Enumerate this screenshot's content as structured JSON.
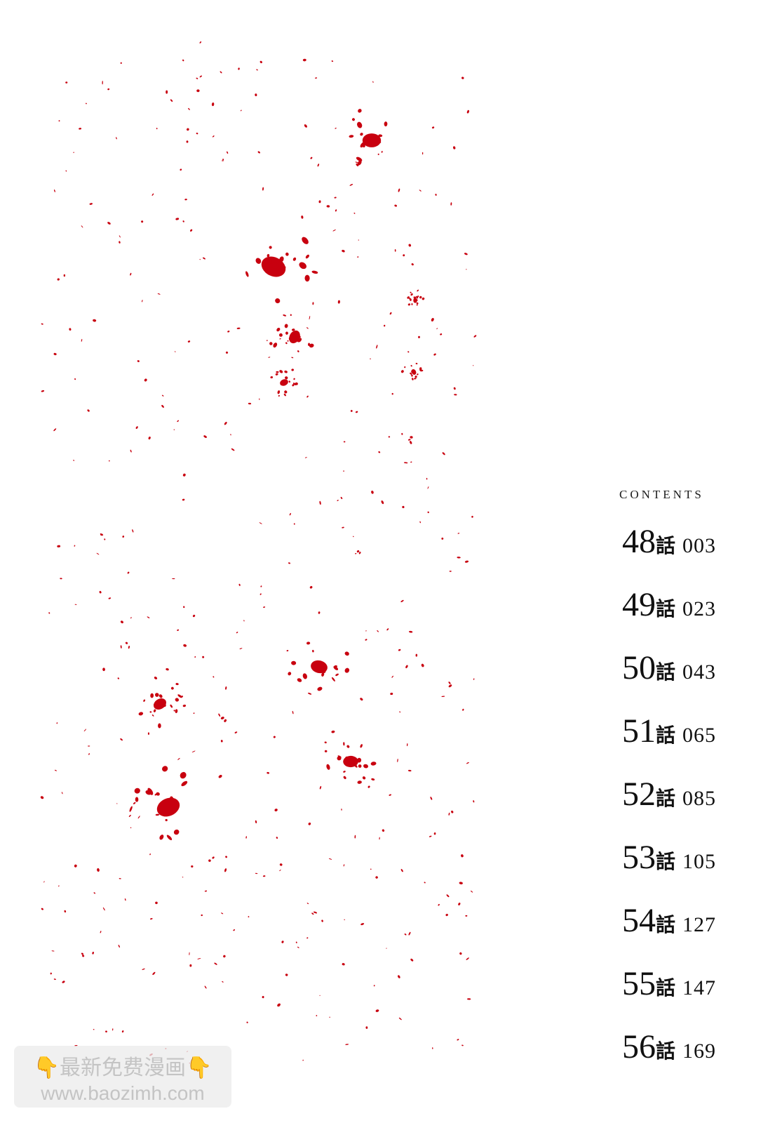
{
  "contents_heading": "CONTENTS",
  "chapter_suffix": "話",
  "chapters": [
    {
      "number": "48",
      "page": "003"
    },
    {
      "number": "49",
      "page": "023"
    },
    {
      "number": "50",
      "page": "043"
    },
    {
      "number": "51",
      "page": "065"
    },
    {
      "number": "52",
      "page": "085"
    },
    {
      "number": "53",
      "page": "105"
    },
    {
      "number": "54",
      "page": "127"
    },
    {
      "number": "55",
      "page": "147"
    },
    {
      "number": "56",
      "page": "169"
    }
  ],
  "watermark": {
    "line1": "最新免费漫画",
    "line2": "www.baozimh.com",
    "icon": "pointing-down-hand-icon"
  },
  "colors": {
    "blood": "#c8000f",
    "text": "#111111"
  }
}
